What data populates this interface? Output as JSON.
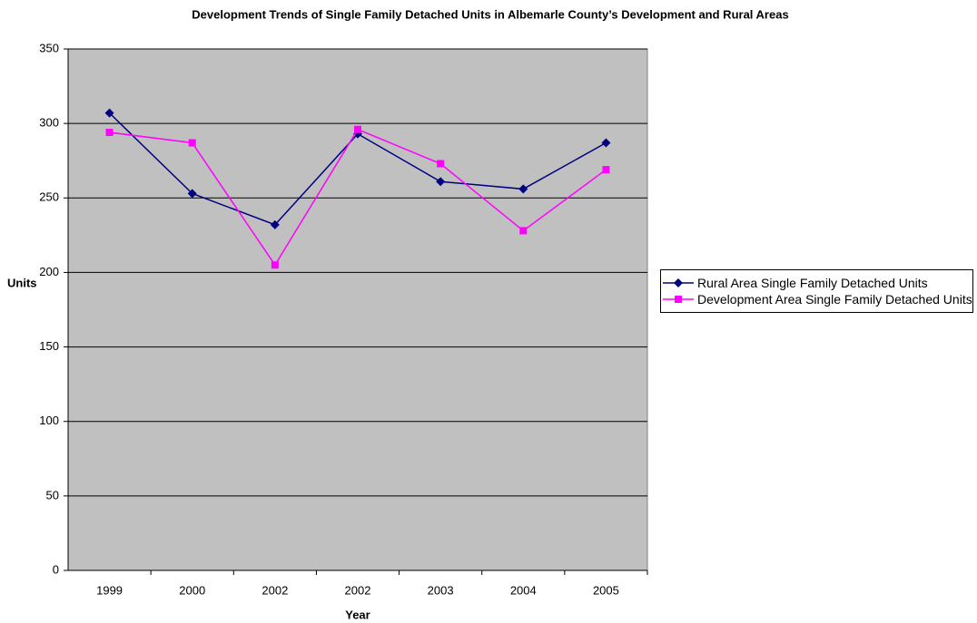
{
  "chart_data": {
    "type": "line",
    "title": "Development Trends of Single Family Detached Units in Albemarle County’s Development and Rural Areas",
    "x_label": "Year",
    "y_label": "Units",
    "categories": [
      "1999",
      "2000",
      "2002",
      "2002",
      "2003",
      "2004",
      "2005"
    ],
    "series": [
      {
        "name": "Rural Area Single Family Detached Units",
        "color": "#000080",
        "marker": "diamond",
        "values": [
          307,
          253,
          232,
          293,
          261,
          256,
          287
        ]
      },
      {
        "name": "Development Area Single Family Detached Units",
        "color": "#ff00ff",
        "marker": "square",
        "values": [
          294,
          287,
          205,
          296,
          273,
          228,
          269
        ]
      }
    ],
    "ylim": [
      0,
      350
    ],
    "yticks": [
      0,
      50,
      100,
      150,
      200,
      250,
      300,
      350
    ],
    "grid": true,
    "legend": "right"
  }
}
